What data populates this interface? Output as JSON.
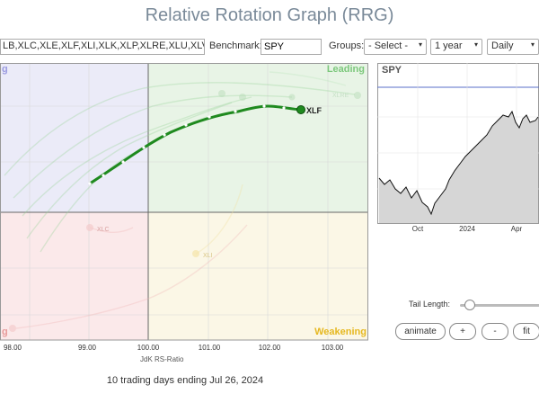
{
  "title": "Relative Rotation Graph (RRG)",
  "toolbar": {
    "symbols_value": "LB,XLC,XLE,XLF,XLI,XLK,XLP,XLRE,XLU,XLV,XL",
    "benchmark_label": "Benchmark:",
    "benchmark_value": "SPY",
    "groups_label": "Groups:",
    "groups_value": "- Select -",
    "period_value": "1 year",
    "frequency_value": "Daily"
  },
  "quadrants": {
    "leading": "Leading",
    "weakening": "Weakening",
    "lagging": "g",
    "improving": "g",
    "colors": {
      "leading": "#e8f4e6",
      "weakening": "#fbf7e6",
      "lagging": "#fbe9ea",
      "improving": "#ebebf8"
    }
  },
  "highlight": {
    "symbol": "XLF",
    "color": "#1f8a1f"
  },
  "faded_labels": {
    "xlc": "XLC",
    "xli": "XLI",
    "xlre": "XLRE"
  },
  "x_axis": {
    "label": "JdK RS-Ratio",
    "ticks": [
      "98.00",
      "99.00",
      "100.00",
      "101.00",
      "102.00",
      "103.00"
    ]
  },
  "footer": "10 trading days ending Jul 26, 2024",
  "price_panel": {
    "symbol": "SPY",
    "months": [
      "Oct",
      "2024",
      "Apr"
    ]
  },
  "controls": {
    "tail_length_label": "Tail Length:",
    "tail_length_value": 0.12,
    "animate": "animate",
    "plus": "+",
    "minus": "-",
    "fit": "fit"
  }
}
